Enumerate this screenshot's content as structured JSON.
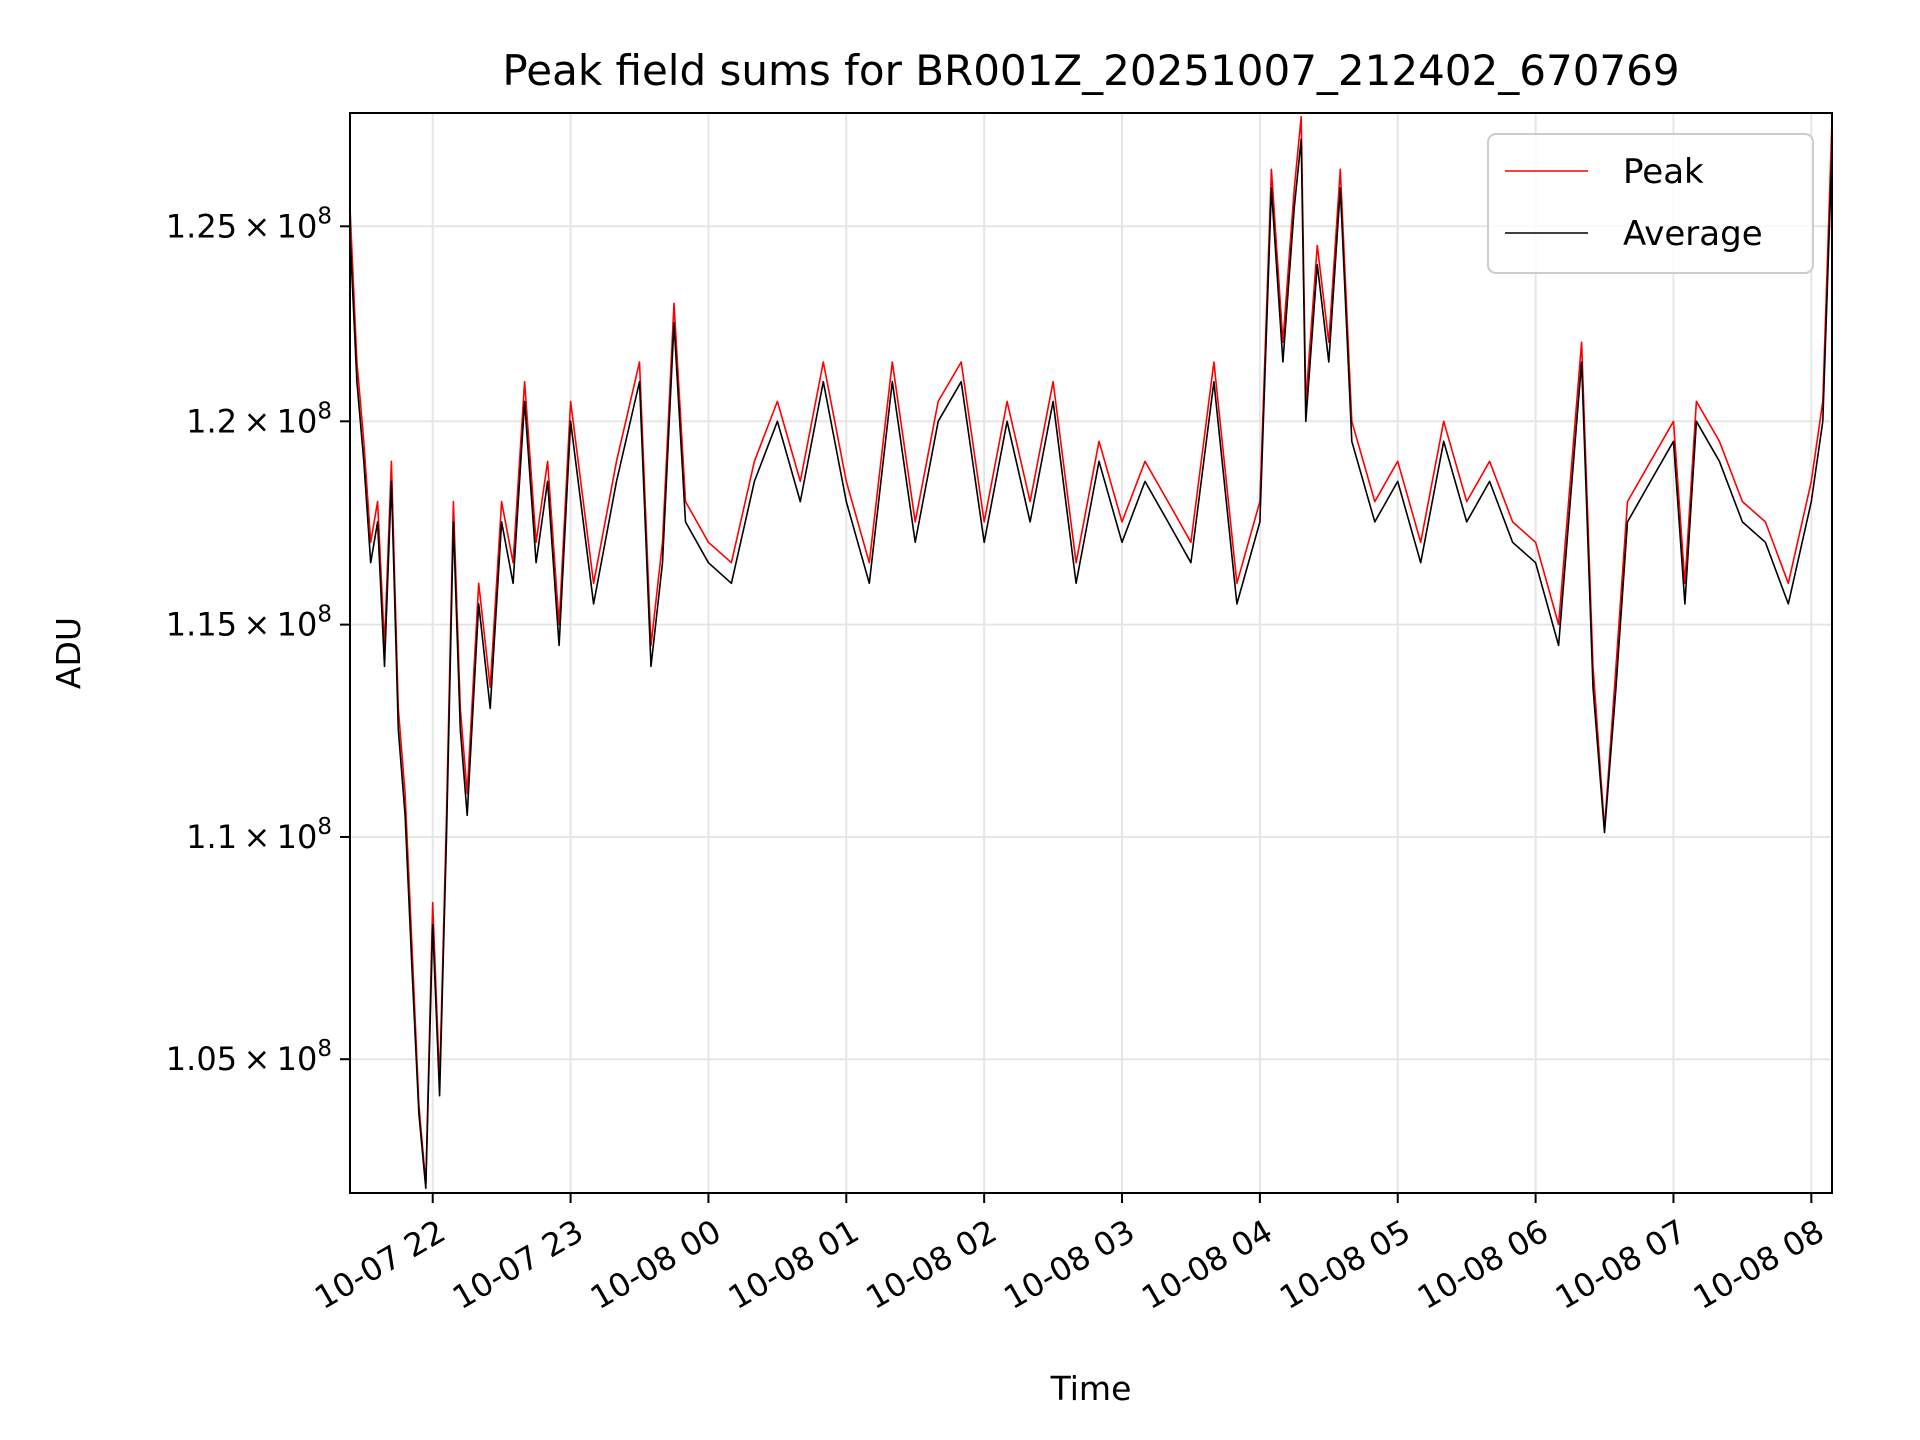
{
  "chart_data": {
    "type": "line",
    "title": "Peak field sums for BR001Z_20251007_212402_670769",
    "xlabel": "Time",
    "ylabel": "ADU",
    "xlim": [
      "2025-10-07 21:24",
      "2025-10-08 08:09"
    ],
    "ylim": [
      102100000,
      128000000
    ],
    "grid": true,
    "legend_position": "top-right",
    "x_tick_labels": [
      "10-07 22",
      "10-07 23",
      "10-08 00",
      "10-08 01",
      "10-08 02",
      "10-08 03",
      "10-08 04",
      "10-08 05",
      "10-08 06",
      "10-08 07",
      "10-08 08"
    ],
    "x_ticks": [
      "2025-10-07 22:00",
      "2025-10-07 23:00",
      "2025-10-08 00:00",
      "2025-10-08 01:00",
      "2025-10-08 02:00",
      "2025-10-08 03:00",
      "2025-10-08 04:00",
      "2025-10-08 05:00",
      "2025-10-08 06:00",
      "2025-10-08 07:00",
      "2025-10-08 08:00"
    ],
    "y_ticks": [
      {
        "value": 105000000,
        "mantissa": "1.05",
        "exponent": "8"
      },
      {
        "value": 110000000,
        "mantissa": "1.1",
        "exponent": "8"
      },
      {
        "value": 115000000,
        "mantissa": "1.15",
        "exponent": "8"
      },
      {
        "value": 120000000,
        "mantissa": "1.2",
        "exponent": "8"
      },
      {
        "value": 125000000,
        "mantissa": "1.25",
        "exponent": "8"
      }
    ],
    "series": [
      {
        "name": "Peak",
        "color": "#ff0000",
        "x": [
          "2025-10-07 21:24",
          "2025-10-07 21:27",
          "2025-10-07 21:30",
          "2025-10-07 21:33",
          "2025-10-07 21:36",
          "2025-10-07 21:39",
          "2025-10-07 21:42",
          "2025-10-07 21:45",
          "2025-10-07 21:48",
          "2025-10-07 21:51",
          "2025-10-07 21:54",
          "2025-10-07 21:57",
          "2025-10-07 22:00",
          "2025-10-07 22:03",
          "2025-10-07 22:06",
          "2025-10-07 22:09",
          "2025-10-07 22:12",
          "2025-10-07 22:15",
          "2025-10-07 22:20",
          "2025-10-07 22:25",
          "2025-10-07 22:30",
          "2025-10-07 22:35",
          "2025-10-07 22:40",
          "2025-10-07 22:45",
          "2025-10-07 22:50",
          "2025-10-07 22:55",
          "2025-10-07 23:00",
          "2025-10-07 23:10",
          "2025-10-07 23:20",
          "2025-10-07 23:30",
          "2025-10-07 23:35",
          "2025-10-07 23:40",
          "2025-10-07 23:45",
          "2025-10-07 23:50",
          "2025-10-08 00:00",
          "2025-10-08 00:10",
          "2025-10-08 00:20",
          "2025-10-08 00:30",
          "2025-10-08 00:40",
          "2025-10-08 00:50",
          "2025-10-08 01:00",
          "2025-10-08 01:10",
          "2025-10-08 01:20",
          "2025-10-08 01:30",
          "2025-10-08 01:40",
          "2025-10-08 01:50",
          "2025-10-08 02:00",
          "2025-10-08 02:10",
          "2025-10-08 02:20",
          "2025-10-08 02:30",
          "2025-10-08 02:40",
          "2025-10-08 02:50",
          "2025-10-08 03:00",
          "2025-10-08 03:10",
          "2025-10-08 03:20",
          "2025-10-08 03:30",
          "2025-10-08 03:40",
          "2025-10-08 03:50",
          "2025-10-08 04:00",
          "2025-10-08 04:05",
          "2025-10-08 04:10",
          "2025-10-08 04:15",
          "2025-10-08 04:18",
          "2025-10-08 04:20",
          "2025-10-08 04:25",
          "2025-10-08 04:30",
          "2025-10-08 04:35",
          "2025-10-08 04:40",
          "2025-10-08 04:50",
          "2025-10-08 05:00",
          "2025-10-08 05:10",
          "2025-10-08 05:20",
          "2025-10-08 05:30",
          "2025-10-08 05:40",
          "2025-10-08 05:50",
          "2025-10-08 06:00",
          "2025-10-08 06:10",
          "2025-10-08 06:20",
          "2025-10-08 06:25",
          "2025-10-08 06:30",
          "2025-10-08 06:35",
          "2025-10-08 06:40",
          "2025-10-08 06:50",
          "2025-10-08 07:00",
          "2025-10-08 07:05",
          "2025-10-08 07:10",
          "2025-10-08 07:20",
          "2025-10-08 07:30",
          "2025-10-08 07:40",
          "2025-10-08 07:50",
          "2025-10-08 08:00",
          "2025-10-08 08:05",
          "2025-10-08 08:09"
        ],
        "values": [
          125500000,
          121500000,
          119500000,
          117000000,
          118000000,
          114500000,
          119000000,
          113000000,
          111000000,
          107500000,
          104000000,
          102300000,
          108500000,
          104500000,
          110500000,
          118000000,
          113000000,
          111000000,
          116000000,
          113500000,
          118000000,
          116500000,
          121000000,
          117000000,
          119000000,
          115000000,
          120500000,
          116000000,
          119000000,
          121500000,
          114500000,
          117000000,
          123000000,
          118000000,
          117000000,
          116500000,
          119000000,
          120500000,
          118500000,
          121500000,
          118500000,
          116500000,
          121500000,
          117500000,
          120500000,
          121500000,
          117500000,
          120500000,
          118000000,
          121000000,
          116500000,
          119500000,
          117500000,
          119000000,
          118000000,
          117000000,
          121500000,
          116000000,
          118000000,
          126500000,
          122000000,
          126000000,
          127900000,
          120500000,
          124500000,
          122000000,
          126500000,
          120000000,
          118000000,
          119000000,
          117000000,
          120000000,
          118000000,
          119000000,
          117500000,
          117000000,
          115000000,
          122000000,
          114000000,
          110200000,
          114000000,
          118000000,
          119000000,
          120000000,
          116000000,
          120500000,
          119500000,
          118000000,
          117500000,
          116000000,
          118500000,
          120500000,
          127800000
        ]
      },
      {
        "name": "Average",
        "color": "#000000",
        "x": [
          "2025-10-07 21:24",
          "2025-10-07 21:27",
          "2025-10-07 21:30",
          "2025-10-07 21:33",
          "2025-10-07 21:36",
          "2025-10-07 21:39",
          "2025-10-07 21:42",
          "2025-10-07 21:45",
          "2025-10-07 21:48",
          "2025-10-07 21:51",
          "2025-10-07 21:54",
          "2025-10-07 21:57",
          "2025-10-07 22:00",
          "2025-10-07 22:03",
          "2025-10-07 22:06",
          "2025-10-07 22:09",
          "2025-10-07 22:12",
          "2025-10-07 22:15",
          "2025-10-07 22:20",
          "2025-10-07 22:25",
          "2025-10-07 22:30",
          "2025-10-07 22:35",
          "2025-10-07 22:40",
          "2025-10-07 22:45",
          "2025-10-07 22:50",
          "2025-10-07 22:55",
          "2025-10-07 23:00",
          "2025-10-07 23:10",
          "2025-10-07 23:20",
          "2025-10-07 23:30",
          "2025-10-07 23:35",
          "2025-10-07 23:40",
          "2025-10-07 23:45",
          "2025-10-07 23:50",
          "2025-10-08 00:00",
          "2025-10-08 00:10",
          "2025-10-08 00:20",
          "2025-10-08 00:30",
          "2025-10-08 00:40",
          "2025-10-08 00:50",
          "2025-10-08 01:00",
          "2025-10-08 01:10",
          "2025-10-08 01:20",
          "2025-10-08 01:30",
          "2025-10-08 01:40",
          "2025-10-08 01:50",
          "2025-10-08 02:00",
          "2025-10-08 02:10",
          "2025-10-08 02:20",
          "2025-10-08 02:30",
          "2025-10-08 02:40",
          "2025-10-08 02:50",
          "2025-10-08 03:00",
          "2025-10-08 03:10",
          "2025-10-08 03:20",
          "2025-10-08 03:30",
          "2025-10-08 03:40",
          "2025-10-08 03:50",
          "2025-10-08 04:00",
          "2025-10-08 04:05",
          "2025-10-08 04:10",
          "2025-10-08 04:15",
          "2025-10-08 04:18",
          "2025-10-08 04:20",
          "2025-10-08 04:25",
          "2025-10-08 04:30",
          "2025-10-08 04:35",
          "2025-10-08 04:40",
          "2025-10-08 04:50",
          "2025-10-08 05:00",
          "2025-10-08 05:10",
          "2025-10-08 05:20",
          "2025-10-08 05:30",
          "2025-10-08 05:40",
          "2025-10-08 05:50",
          "2025-10-08 06:00",
          "2025-10-08 06:10",
          "2025-10-08 06:20",
          "2025-10-08 06:25",
          "2025-10-08 06:30",
          "2025-10-08 06:35",
          "2025-10-08 06:40",
          "2025-10-08 06:50",
          "2025-10-08 07:00",
          "2025-10-08 07:05",
          "2025-10-08 07:10",
          "2025-10-08 07:20",
          "2025-10-08 07:30",
          "2025-10-08 07:40",
          "2025-10-08 07:50",
          "2025-10-08 08:00",
          "2025-10-08 08:05",
          "2025-10-08 08:09"
        ],
        "values": [
          124800000,
          121000000,
          119000000,
          116500000,
          117500000,
          114000000,
          118500000,
          112500000,
          110500000,
          107000000,
          103800000,
          102200000,
          108000000,
          104200000,
          110000000,
          117500000,
          112500000,
          110500000,
          115500000,
          113000000,
          117500000,
          116000000,
          120500000,
          116500000,
          118500000,
          114500000,
          120000000,
          115500000,
          118500000,
          121000000,
          114000000,
          116500000,
          122500000,
          117500000,
          116500000,
          116000000,
          118500000,
          120000000,
          118000000,
          121000000,
          118000000,
          116000000,
          121000000,
          117000000,
          120000000,
          121000000,
          117000000,
          120000000,
          117500000,
          120500000,
          116000000,
          119000000,
          117000000,
          118500000,
          117500000,
          116500000,
          121000000,
          115500000,
          117500000,
          126000000,
          121500000,
          125500000,
          127300000,
          120000000,
          124000000,
          121500000,
          126000000,
          119500000,
          117500000,
          118500000,
          116500000,
          119500000,
          117500000,
          118500000,
          117000000,
          116500000,
          114500000,
          121500000,
          113500000,
          110100000,
          113500000,
          117500000,
          118500000,
          119500000,
          115500000,
          120000000,
          119000000,
          117500000,
          117000000,
          115500000,
          118000000,
          120000000,
          127000000
        ]
      }
    ]
  }
}
